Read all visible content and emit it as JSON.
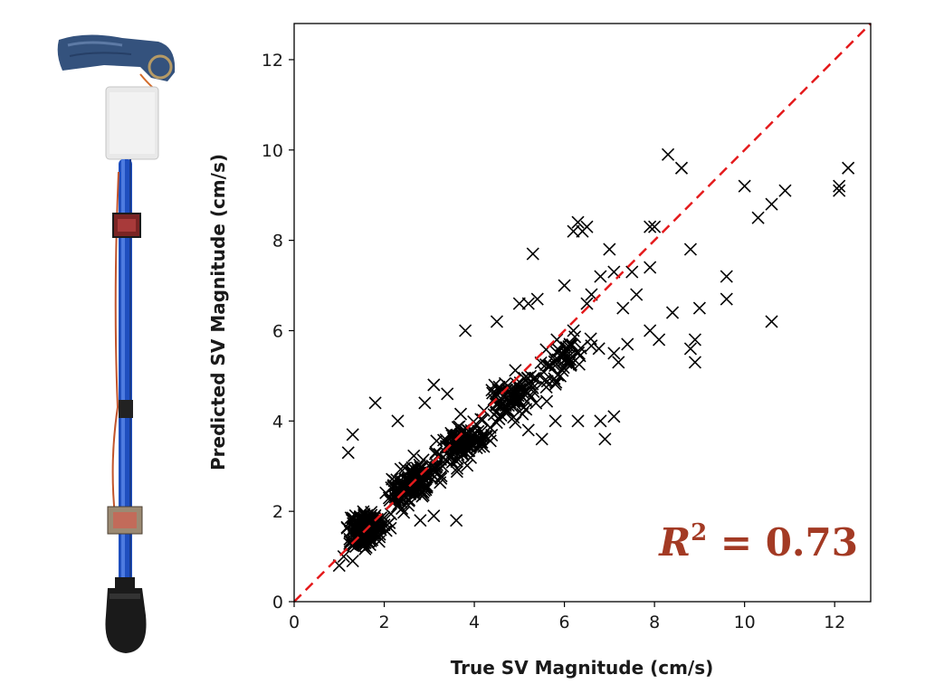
{
  "chart_data": {
    "type": "scatter",
    "xlabel": "True SV Magnitude (cm/s)",
    "ylabel": "Predicted SV Magnitude (cm/s)",
    "xlim": [
      0,
      12.8
    ],
    "ylim": [
      0,
      12.8
    ],
    "xticks": [
      0,
      2,
      4,
      6,
      8,
      10,
      12
    ],
    "yticks": [
      0,
      2,
      4,
      6,
      8,
      10,
      12
    ],
    "grid": false,
    "marker": "x",
    "marker_color": "#000000",
    "reference_line": {
      "style": "dashed",
      "color": "#e41a1c",
      "from": [
        0,
        0
      ],
      "to": [
        12.8,
        12.8
      ]
    },
    "annotation": {
      "base": "R",
      "exponent": "2",
      "rest": " = 0.73",
      "color": "#a33a24",
      "placement": "bottom-right"
    },
    "points": [
      [
        8.3,
        9.9
      ],
      [
        8.6,
        9.6
      ],
      [
        10.0,
        9.2
      ],
      [
        10.9,
        9.1
      ],
      [
        12.1,
        9.1
      ],
      [
        12.1,
        9.2
      ],
      [
        12.3,
        9.6
      ],
      [
        10.6,
        8.8
      ],
      [
        10.3,
        8.5
      ],
      [
        8.0,
        8.3
      ],
      [
        7.9,
        8.3
      ],
      [
        8.8,
        7.8
      ],
      [
        6.2,
        8.2
      ],
      [
        6.3,
        8.4
      ],
      [
        6.5,
        8.3
      ],
      [
        6.4,
        8.2
      ],
      [
        7.0,
        7.8
      ],
      [
        5.3,
        7.7
      ],
      [
        7.1,
        7.3
      ],
      [
        7.5,
        7.3
      ],
      [
        7.9,
        7.4
      ],
      [
        6.8,
        7.2
      ],
      [
        9.6,
        7.2
      ],
      [
        9.6,
        6.7
      ],
      [
        9.0,
        6.5
      ],
      [
        8.4,
        6.4
      ],
      [
        10.6,
        6.2
      ],
      [
        7.3,
        6.5
      ],
      [
        7.6,
        6.8
      ],
      [
        7.9,
        6.0
      ],
      [
        8.1,
        5.8
      ],
      [
        8.8,
        5.6
      ],
      [
        8.9,
        5.8
      ],
      [
        8.9,
        5.3
      ],
      [
        7.1,
        5.5
      ],
      [
        7.4,
        5.7
      ],
      [
        7.2,
        5.3
      ],
      [
        6.3,
        4.0
      ],
      [
        6.8,
        4.0
      ],
      [
        7.1,
        4.1
      ],
      [
        6.9,
        3.6
      ],
      [
        5.2,
        3.8
      ],
      [
        5.5,
        3.6
      ],
      [
        5.8,
        4.0
      ],
      [
        3.8,
        6.0
      ],
      [
        4.5,
        6.2
      ],
      [
        5.0,
        6.6
      ],
      [
        5.2,
        6.6
      ],
      [
        5.4,
        6.7
      ],
      [
        6.0,
        7.0
      ],
      [
        6.2,
        6.0
      ],
      [
        6.5,
        6.6
      ],
      [
        6.6,
        6.8
      ],
      [
        3.6,
        1.8
      ],
      [
        3.1,
        1.9
      ],
      [
        2.8,
        1.8
      ],
      [
        1.8,
        4.4
      ],
      [
        2.3,
        4.0
      ],
      [
        2.9,
        4.4
      ],
      [
        3.1,
        4.8
      ],
      [
        3.4,
        4.6
      ],
      [
        2.0,
        1.7
      ],
      [
        1.6,
        1.2
      ],
      [
        1.3,
        0.9
      ],
      [
        1.1,
        1.0
      ],
      [
        1.0,
        0.8
      ],
      [
        1.3,
        3.7
      ],
      [
        1.2,
        3.3
      ],
      [
        1.5,
        1.5
      ]
    ],
    "cloud_clusters": [
      {
        "cx": 1.6,
        "cy": 1.6,
        "sx": 0.45,
        "sy": 0.55,
        "n": 200
      },
      {
        "cx": 2.6,
        "cy": 2.6,
        "sx": 0.6,
        "sy": 0.6,
        "n": 150
      },
      {
        "cx": 3.7,
        "cy": 3.5,
        "sx": 0.65,
        "sy": 0.65,
        "n": 120
      },
      {
        "cx": 4.8,
        "cy": 4.5,
        "sx": 0.7,
        "sy": 0.7,
        "n": 90
      },
      {
        "cx": 6.0,
        "cy": 5.4,
        "sx": 0.75,
        "sy": 0.75,
        "n": 55
      }
    ]
  }
}
